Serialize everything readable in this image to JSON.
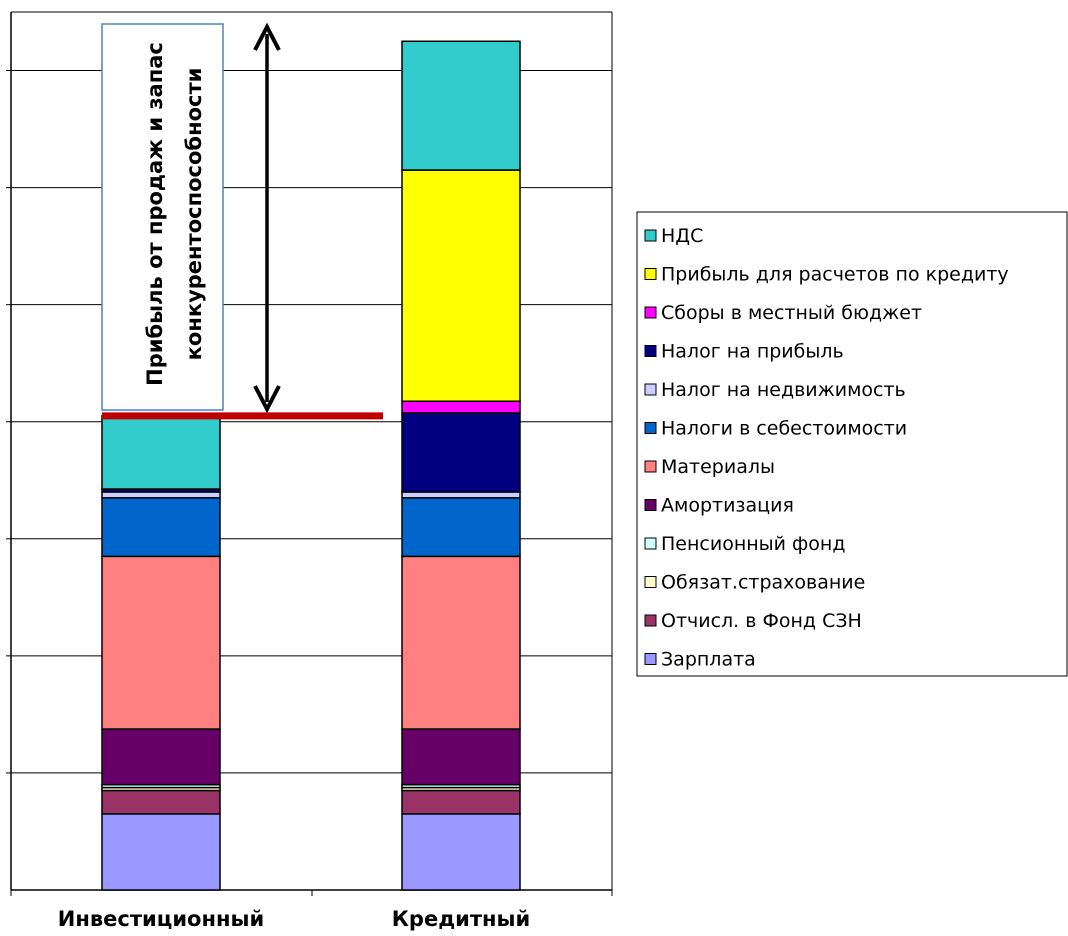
{
  "chart_data": {
    "type": "bar",
    "stacked": true,
    "grid": true,
    "legend_position": "right",
    "categories": [
      "Инвестиционный",
      "Кредитный"
    ],
    "ylim": [
      0,
      15
    ],
    "series": [
      {
        "name": "Зарплата",
        "color": "#9999ff",
        "values": [
          1.3,
          1.3
        ]
      },
      {
        "name": "Отчисл. в Фонд  СЗН",
        "color": "#993366",
        "values": [
          0.4,
          0.4
        ]
      },
      {
        "name": "Обязат.страхование",
        "color": "#ffffcc",
        "values": [
          0.05,
          0.05
        ]
      },
      {
        "name": "Пенсионный фонд",
        "color": "#ccffff",
        "values": [
          0.05,
          0.05
        ]
      },
      {
        "name": "Амортизация",
        "color": "#660066",
        "values": [
          0.95,
          0.95
        ]
      },
      {
        "name": "Материалы",
        "color": "#ff8080",
        "values": [
          2.95,
          2.95
        ]
      },
      {
        "name": "Налоги в себестоимости",
        "color": "#0066cc",
        "values": [
          1.0,
          1.0
        ]
      },
      {
        "name": "Налог на недвижимость",
        "color": "#ccccff",
        "values": [
          0.1,
          0.1
        ]
      },
      {
        "name": "Налог на прибыль",
        "color": "#000080",
        "values": [
          0.05,
          1.35
        ]
      },
      {
        "name": "Сборы в местный бюджет",
        "color": "#ff00ff",
        "values": [
          0.0,
          0.2
        ]
      },
      {
        "name": "Прибыль для расчетов по кредиту",
        "color": "#ffff00",
        "values": [
          0.0,
          3.95
        ]
      },
      {
        "name": "НДС",
        "color": "#33cccc",
        "values": [
          1.25,
          2.2
        ]
      }
    ],
    "annotation": {
      "text_line1": "Прибыль от продаж и запас",
      "text_line2": "конкурентоспособности",
      "line_color": "#c00000"
    }
  }
}
